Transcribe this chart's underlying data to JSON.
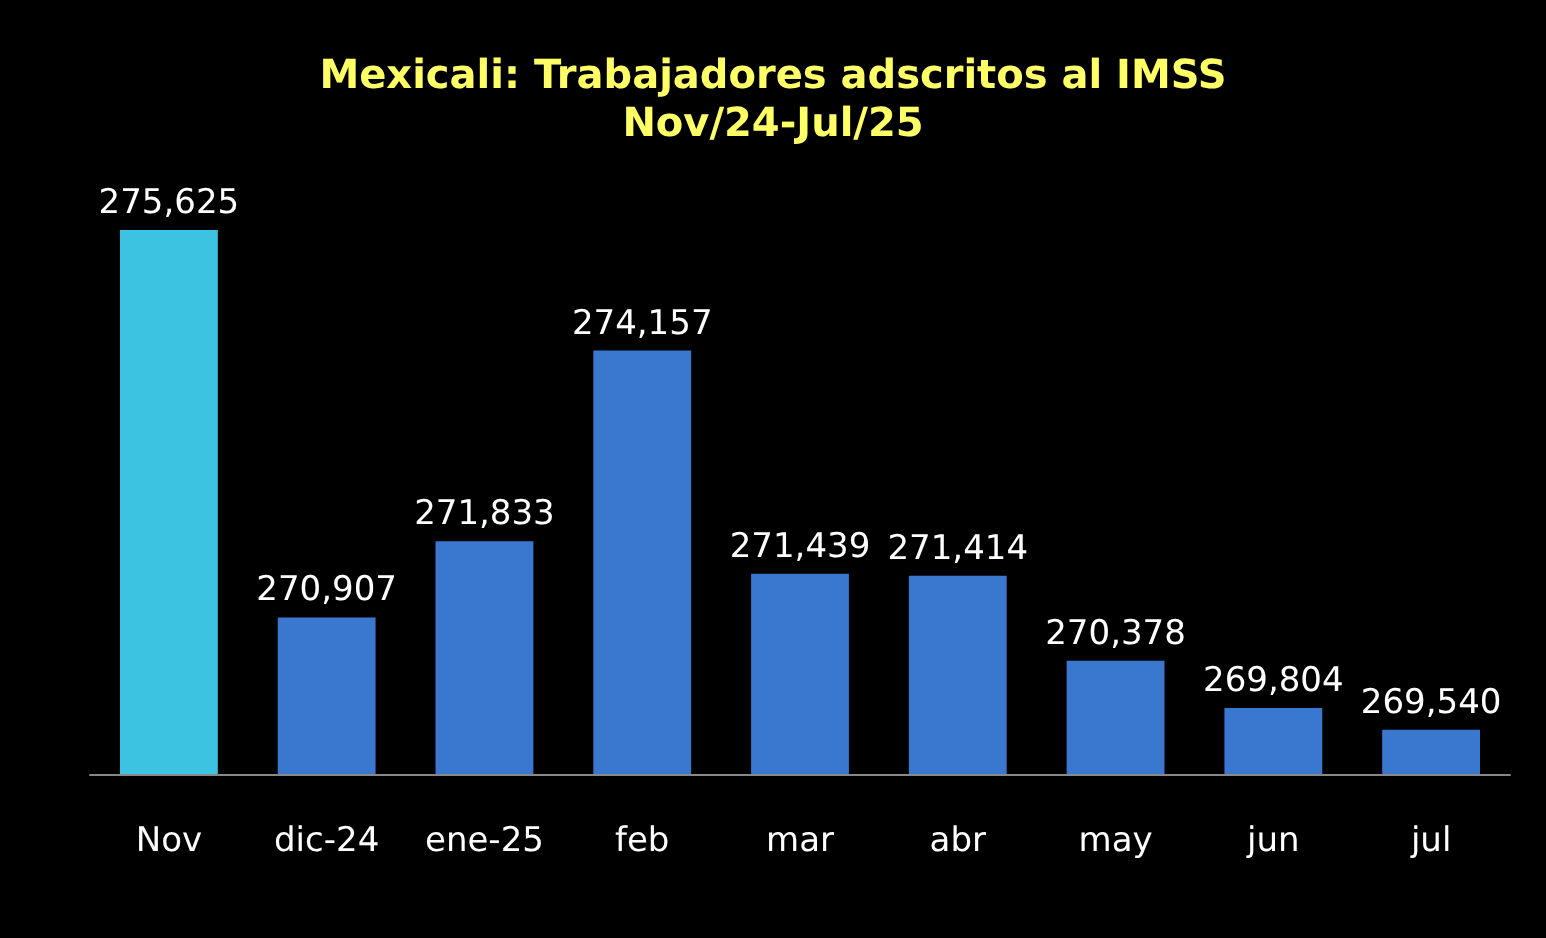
{
  "chart_data": {
    "type": "bar",
    "title": "Mexicali: Trabajadores adscritos al IMSS",
    "subtitle": "Nov/24-Jul/25",
    "categories": [
      "Nov",
      "dic-24",
      "ene-25",
      "feb",
      "mar",
      "abr",
      "may",
      "jun",
      "jul"
    ],
    "values": [
      275625,
      270907,
      271833,
      274157,
      271439,
      271414,
      270378,
      269804,
      269540
    ],
    "colors": [
      "#3cc3e2",
      "#3a78d0",
      "#3a78d0",
      "#3a78d0",
      "#3a78d0",
      "#3a78d0",
      "#3a78d0",
      "#3a78d0",
      "#3a78d0"
    ],
    "value_labels": [
      "275,625",
      "270,907",
      "271,833",
      "274,157",
      "271,439",
      "271,414",
      "270,378",
      "269,804",
      "269,540"
    ],
    "ylim": [
      269000,
      275625
    ],
    "tick_labels": "x"
  }
}
